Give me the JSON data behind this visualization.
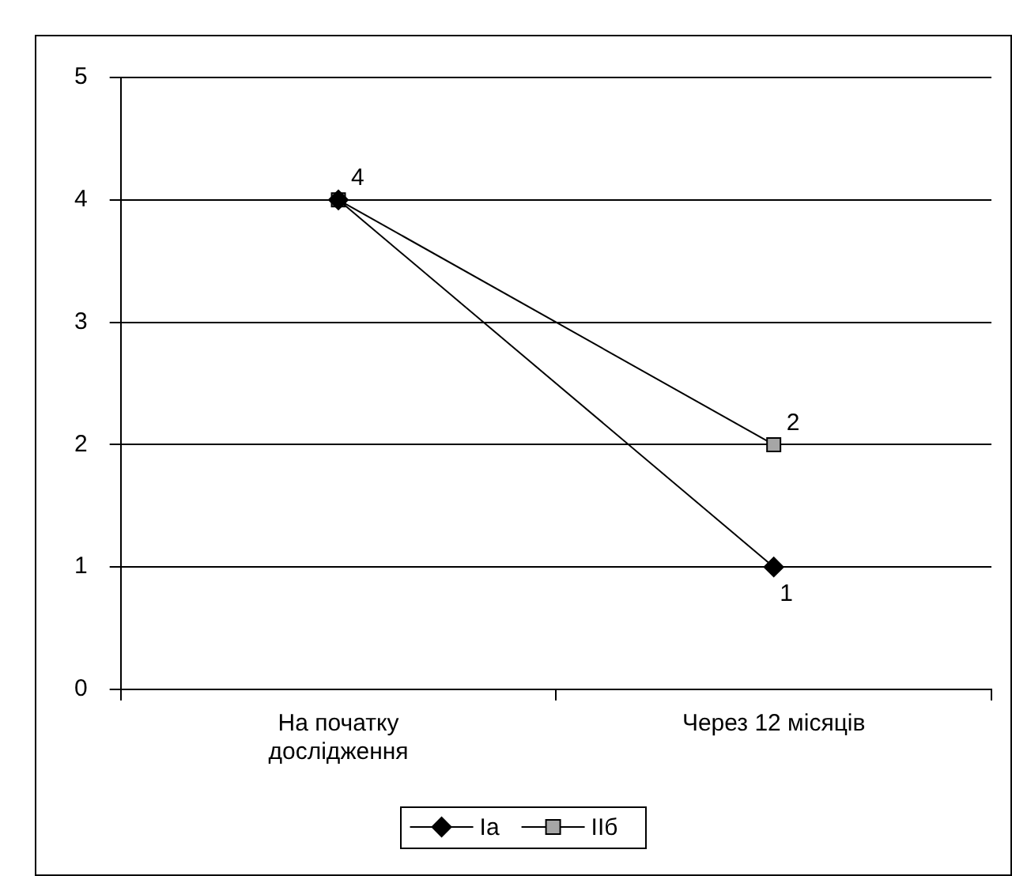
{
  "chart_data": {
    "type": "line",
    "categories": [
      "На початку дослідження",
      "Через 12 місяців"
    ],
    "series": [
      {
        "name": "Іа",
        "color": "#000000",
        "marker": "diamond",
        "values": [
          4,
          1
        ],
        "value_labels": [
          null,
          "1"
        ]
      },
      {
        "name": "ІІб",
        "color": "#a6a6a6",
        "marker": "square",
        "values": [
          4,
          2
        ],
        "value_labels": [
          "4",
          "2"
        ]
      }
    ],
    "ylim": [
      0,
      5
    ],
    "yticks": [
      0,
      1,
      2,
      3,
      4,
      5
    ],
    "grid": "y",
    "legend": "bottom",
    "line_style": "solid"
  }
}
